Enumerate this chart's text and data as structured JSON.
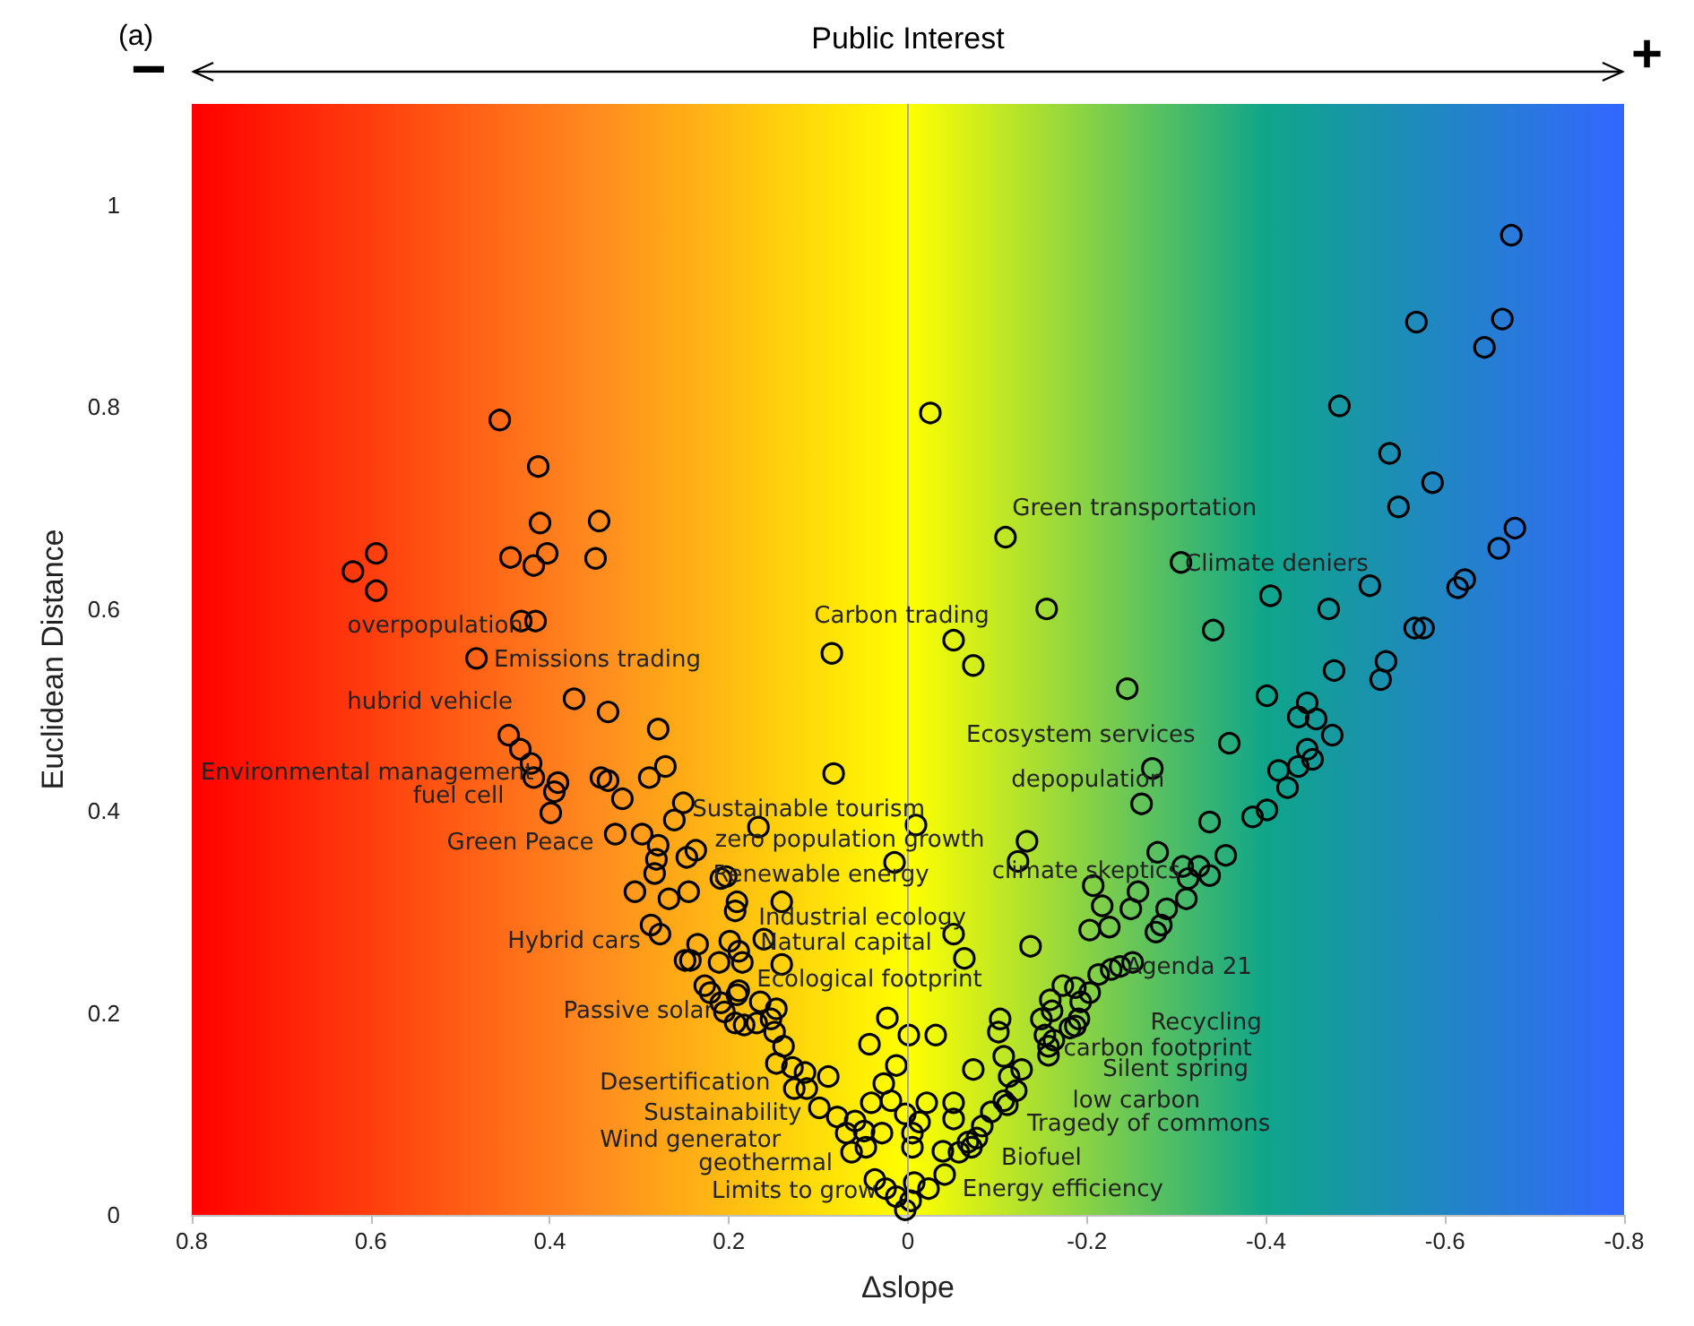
{
  "chart_data": {
    "type": "scatter",
    "xlabel": "Δslope",
    "ylabel": "Euclidean Distance",
    "xlim": [
      0.8,
      -0.8
    ],
    "xticks": [
      0.8,
      0.6,
      0.4,
      0.2,
      0,
      -0.2,
      -0.4,
      -0.6,
      -0.8
    ],
    "ylim": [
      0,
      1.1
    ],
    "yticks": [
      0,
      0.2,
      0.4,
      0.6,
      0.8,
      1
    ],
    "grid": false,
    "legend": false,
    "marker": "circle",
    "ref_lines": [
      {
        "axis": "x",
        "value": 0,
        "color": "#a6a6a6"
      }
    ],
    "series": [
      {
        "color": "#000000",
        "x": [
          0.456,
          0.413,
          0.411,
          0.345,
          0.444,
          0.403,
          0.418,
          0.349,
          0.594,
          0.62,
          0.594,
          0.432,
          0.416,
          0.482,
          0.373,
          0.335,
          0.279,
          0.446,
          0.433,
          0.421,
          0.418,
          0.391,
          0.395,
          0.343,
          0.335,
          0.319,
          0.289,
          0.271,
          0.399,
          0.251,
          0.261,
          0.327,
          0.297,
          0.279,
          0.281,
          0.283,
          0.247,
          0.237,
          0.209,
          0.203,
          0.305,
          0.267,
          0.245,
          0.191,
          0.193,
          0.287,
          0.277,
          0.235,
          0.249,
          0.243,
          0.211,
          0.199,
          0.189,
          0.185,
          0.227,
          0.221,
          0.209,
          0.191,
          0.205,
          0.193,
          0.183,
          -0.025,
          -0.109,
          -0.155,
          -0.051,
          -0.073,
          -0.245,
          0.085,
          0.083,
          -0.273,
          -0.261,
          0.167,
          -0.009,
          -0.133,
          -0.123,
          0.015,
          -0.279,
          0.141,
          -0.051,
          -0.063,
          -0.137,
          0.161,
          0.141,
          0.189,
          0.165,
          0.147,
          0.169,
          0.153,
          0.149,
          0.139,
          0.147,
          0.129,
          0.115,
          0.127,
          0.113,
          0.089,
          0.099,
          0.079,
          0.069,
          0.059,
          0.049,
          0.047,
          0.063,
          0.043,
          0.023,
          0.013,
          0.027,
          0.019,
          0.041,
          0.029,
          0.037,
          0.025,
          0.013,
          0.003,
          -0.003,
          -0.007,
          -0.001,
          -0.031,
          0.003,
          -0.005,
          -0.013,
          -0.005,
          -0.021,
          -0.023,
          -0.041,
          -0.039,
          -0.051,
          -0.051,
          -0.073,
          -0.103,
          -0.101,
          -0.107,
          -0.127,
          -0.113,
          -0.121,
          -0.107,
          -0.093,
          -0.083,
          -0.067,
          -0.057,
          -0.149,
          -0.159,
          -0.161,
          -0.173,
          -0.187,
          -0.193,
          -0.203,
          -0.213,
          -0.227,
          -0.237,
          -0.251,
          -0.153,
          -0.157,
          -0.163,
          -0.187,
          -0.191,
          -0.674,
          -0.568,
          -0.664,
          -0.644,
          -0.482,
          -0.538,
          -0.586,
          -0.548,
          -0.678,
          -0.66,
          -0.305,
          -0.405,
          -0.47,
          -0.516,
          -0.622,
          -0.614,
          -0.341,
          -0.566,
          -0.576,
          -0.476,
          -0.534,
          -0.528,
          -0.401,
          -0.446,
          -0.436,
          -0.456,
          -0.474,
          -0.359,
          -0.446,
          -0.452,
          -0.414,
          -0.436,
          -0.424,
          -0.385,
          -0.401,
          -0.337,
          -0.355,
          -0.307,
          -0.325,
          -0.337,
          -0.313,
          -0.311,
          -0.207,
          -0.257,
          -0.217,
          -0.249,
          -0.289,
          -0.203,
          -0.225,
          -0.283,
          -0.277,
          -0.181,
          -0.157,
          -0.111,
          -0.077,
          -0.071
        ],
        "values": [
          0.787,
          0.741,
          0.685,
          0.687,
          0.651,
          0.655,
          0.643,
          0.65,
          0.655,
          0.637,
          0.618,
          0.588,
          0.588,
          0.551,
          0.511,
          0.498,
          0.481,
          0.475,
          0.461,
          0.447,
          0.433,
          0.428,
          0.419,
          0.433,
          0.43,
          0.412,
          0.433,
          0.444,
          0.398,
          0.408,
          0.391,
          0.377,
          0.377,
          0.366,
          0.352,
          0.338,
          0.354,
          0.361,
          0.333,
          0.335,
          0.32,
          0.313,
          0.32,
          0.31,
          0.301,
          0.287,
          0.278,
          0.268,
          0.252,
          0.252,
          0.25,
          0.271,
          0.261,
          0.25,
          0.227,
          0.22,
          0.21,
          0.218,
          0.201,
          0.19,
          0.188,
          0.794,
          0.671,
          0.6,
          0.569,
          0.544,
          0.521,
          0.556,
          0.437,
          0.442,
          0.407,
          0.384,
          0.386,
          0.37,
          0.35,
          0.349,
          0.359,
          0.31,
          0.278,
          0.254,
          0.266,
          0.273,
          0.248,
          0.222,
          0.211,
          0.204,
          0.19,
          0.194,
          0.181,
          0.167,
          0.15,
          0.146,
          0.141,
          0.125,
          0.125,
          0.137,
          0.106,
          0.097,
          0.081,
          0.093,
          0.083,
          0.067,
          0.062,
          0.169,
          0.195,
          0.148,
          0.13,
          0.113,
          0.111,
          0.081,
          0.035,
          0.026,
          0.018,
          0.005,
          0.014,
          0.032,
          0.178,
          0.178,
          0.1,
          0.081,
          0.092,
          0.067,
          0.111,
          0.026,
          0.04,
          0.063,
          0.111,
          0.095,
          0.144,
          0.194,
          0.181,
          0.157,
          0.144,
          0.137,
          0.123,
          0.113,
          0.102,
          0.088,
          0.072,
          0.062,
          0.194,
          0.213,
          0.202,
          0.227,
          0.225,
          0.211,
          0.22,
          0.238,
          0.243,
          0.246,
          0.25,
          0.178,
          0.167,
          0.173,
          0.187,
          0.194,
          0.97,
          0.884,
          0.887,
          0.859,
          0.801,
          0.754,
          0.725,
          0.701,
          0.68,
          0.66,
          0.646,
          0.613,
          0.6,
          0.623,
          0.629,
          0.621,
          0.579,
          0.581,
          0.581,
          0.539,
          0.548,
          0.53,
          0.514,
          0.507,
          0.493,
          0.491,
          0.475,
          0.467,
          0.461,
          0.451,
          0.44,
          0.444,
          0.423,
          0.394,
          0.401,
          0.389,
          0.356,
          0.345,
          0.345,
          0.336,
          0.333,
          0.313,
          0.326,
          0.32,
          0.306,
          0.303,
          0.303,
          0.282,
          0.285,
          0.287,
          0.28,
          0.185,
          0.158,
          0.109,
          0.076,
          0.067
        ]
      }
    ],
    "annotations": [
      "(a)",
      "Public Interest",
      "−",
      "+",
      "overpopulation",
      "Emissions trading",
      "hubrid vehicle",
      "Environmental management",
      "fuel cell",
      "Green Peace",
      "Sustainable tourism",
      "zero population growth",
      "Renewable energy",
      "Industrial ecology",
      "Natural capital",
      "Ecological footprint",
      "Hybrid cars",
      "Passive solar",
      "Desertification",
      "Sustainability",
      "Wind generator",
      "geothermal",
      "Limits to grow",
      "Carbon trading",
      "Green transportation",
      "Climate deniers",
      "Ecosystem services",
      "depopulation",
      "climate skeptics",
      "Agenda 21",
      "Recycling",
      "carbon footprint",
      "Silent spring",
      "low carbon",
      "Tragedy of commons",
      "Biofuel",
      "Energy efficiency"
    ]
  }
}
